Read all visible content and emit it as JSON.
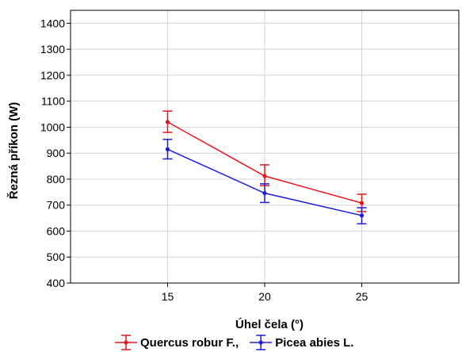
{
  "chart_data": {
    "type": "line",
    "xlabel": "Úhel čela (°)",
    "ylabel": "Řezná příkon (W)",
    "x": [
      15,
      20,
      25
    ],
    "xlim": [
      10,
      30
    ],
    "ylim": [
      400,
      1450
    ],
    "xticks": [
      15,
      20,
      25
    ],
    "yticks": [
      400,
      500,
      600,
      700,
      800,
      900,
      1000,
      1100,
      1200,
      1300,
      1400
    ],
    "grid": true,
    "legend_position": "bottom",
    "series": [
      {
        "name": "Quercus robur F.,",
        "color": "#e8141c",
        "values": [
          1020,
          812,
          708
        ],
        "err_low": [
          980,
          775,
          675
        ],
        "err_high": [
          1062,
          855,
          742
        ]
      },
      {
        "name": "Picea abies L.",
        "color": "#1c1cd8",
        "values": [
          915,
          746,
          660
        ],
        "err_low": [
          878,
          710,
          628
        ],
        "err_high": [
          953,
          782,
          690
        ]
      }
    ]
  }
}
